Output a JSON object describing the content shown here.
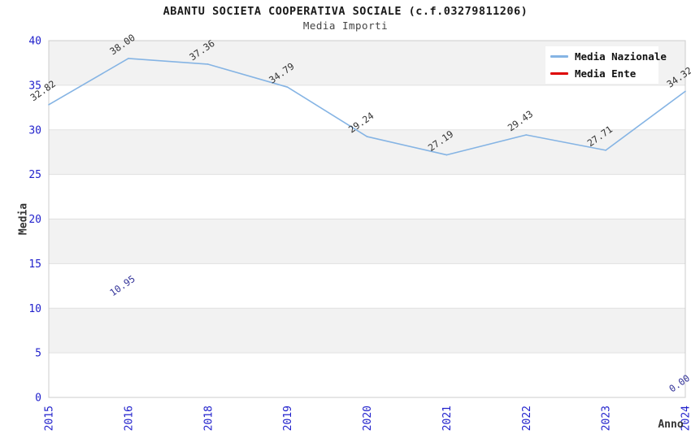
{
  "chart_data": {
    "type": "line",
    "title": "ABANTU SOCIETA COOPERATIVA SOCIALE (c.f.03279811206)",
    "subtitle": "Media Importi",
    "xlabel": "Anno",
    "ylabel": "Media",
    "categories": [
      "2015",
      "2016",
      "2018",
      "2019",
      "2020",
      "2021",
      "2022",
      "2023",
      "2024"
    ],
    "series": [
      {
        "name": "Media Nazionale",
        "color": "#85b4e4",
        "label_color": "#333333",
        "values": [
          32.82,
          38.0,
          37.36,
          34.79,
          29.24,
          27.19,
          29.43,
          27.71,
          34.32
        ]
      },
      {
        "name": "Media Ente",
        "color": "#dd0000",
        "label_color": "#333399",
        "values": [
          null,
          10.95,
          null,
          null,
          null,
          null,
          null,
          null,
          0.0
        ]
      }
    ],
    "ylim": [
      0,
      40
    ],
    "yticks": [
      0,
      5,
      10,
      15,
      20,
      25,
      30,
      35,
      40
    ],
    "gray_bands": [
      [
        5,
        10
      ],
      [
        15,
        20
      ],
      [
        25,
        30
      ],
      [
        35,
        40
      ]
    ],
    "grid": true,
    "legend_position": "top-right",
    "colors": {
      "tick_label": "#2222cc",
      "axis_title": "#333333",
      "band_fill": "#f2f2f2",
      "grid_line": "#e0e0e0",
      "plot_border": "#cccccc",
      "plot_background": "#ffffff"
    }
  }
}
